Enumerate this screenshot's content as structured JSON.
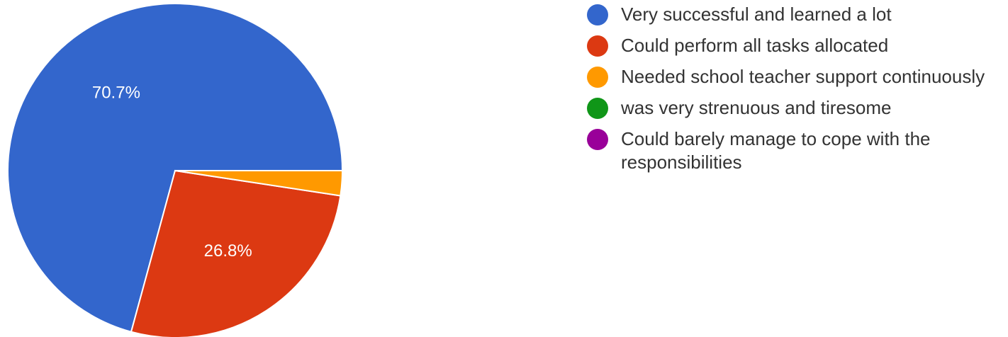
{
  "chart_data": {
    "type": "pie",
    "slices": [
      {
        "label": "Very successful and learned a lot",
        "value": 70.7,
        "color": "#3366cc",
        "data_label": "70.7%"
      },
      {
        "label": "Could perform all tasks allocated",
        "value": 26.8,
        "color": "#dc3912",
        "data_label": "26.8%"
      },
      {
        "label": "Needed school teacher support continuously",
        "value": 2.4,
        "color": "#ff9900",
        "data_label": ""
      },
      {
        "label": "was very strenuous and tiresome",
        "value": 0,
        "color": "#109618",
        "data_label": ""
      },
      {
        "label": "Could barely manage to cope with the responsibilities",
        "value": 0,
        "color": "#990099",
        "data_label": ""
      }
    ],
    "legend_position": "right"
  }
}
